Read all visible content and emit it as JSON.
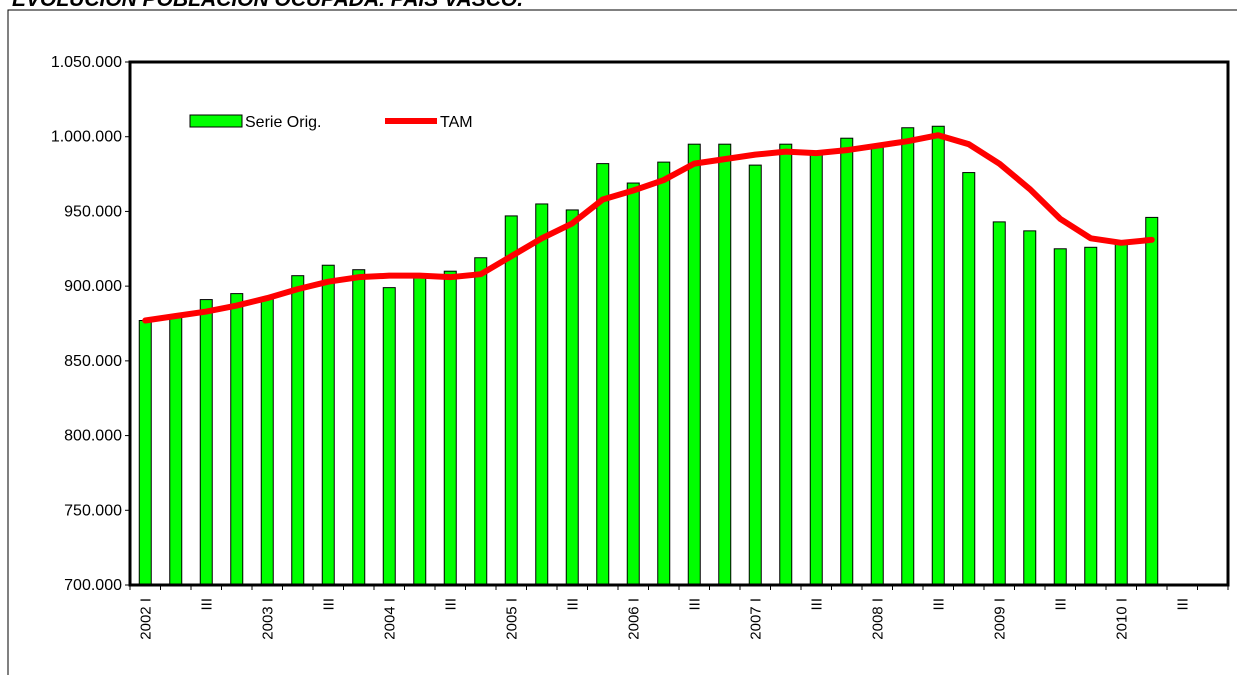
{
  "chart_data": {
    "type": "bar",
    "title": "EVOLUCIÓN POBLACIÓN OCUPADA. PAÍS VASCO.",
    "categories": [
      "2002 I",
      null,
      "III",
      null,
      "2003 I",
      null,
      "III",
      null,
      "2004 I",
      null,
      "III",
      null,
      "2005 I",
      null,
      "III",
      null,
      "2006 I",
      null,
      "III",
      null,
      "2007 I",
      null,
      "III",
      null,
      "2008 I",
      null,
      "III",
      null,
      "2009 I",
      null,
      "III",
      null,
      "2010 I",
      null,
      "III",
      null
    ],
    "series": [
      {
        "name": "Serie Orig.",
        "type": "bar",
        "color": "#00ff00",
        "values": [
          877000,
          879000,
          891000,
          895000,
          892000,
          907000,
          914000,
          911000,
          899000,
          907000,
          910000,
          919000,
          947000,
          955000,
          951000,
          982000,
          969000,
          983000,
          995000,
          995000,
          981000,
          995000,
          990000,
          999000,
          993000,
          1006000,
          1007000,
          976000,
          943000,
          937000,
          925000,
          926000,
          930000,
          946000,
          null,
          null
        ]
      },
      {
        "name": "TAM",
        "type": "line",
        "color": "#ff0000",
        "values": [
          877000,
          880000,
          883000,
          887000,
          892000,
          898000,
          903000,
          906000,
          907000,
          907000,
          906000,
          908000,
          920000,
          932000,
          942000,
          958000,
          964000,
          971000,
          982000,
          985000,
          988000,
          990000,
          989000,
          991000,
          994000,
          997000,
          1001000,
          995000,
          982000,
          965000,
          945000,
          932000,
          929000,
          931000,
          null,
          null
        ]
      }
    ],
    "ylim": [
      700000,
      1050000
    ],
    "yticks": [
      {
        "value": 700000,
        "label": "700.000"
      },
      {
        "value": 750000,
        "label": "750.000"
      },
      {
        "value": 800000,
        "label": "800.000"
      },
      {
        "value": 850000,
        "label": "850.000"
      },
      {
        "value": 900000,
        "label": "900.000"
      },
      {
        "value": 950000,
        "label": "950.000"
      },
      {
        "value": 1000000,
        "label": "1.000.000"
      },
      {
        "value": 1050000,
        "label": "1.050.000"
      }
    ],
    "legend": "top-left",
    "grid": false
  }
}
